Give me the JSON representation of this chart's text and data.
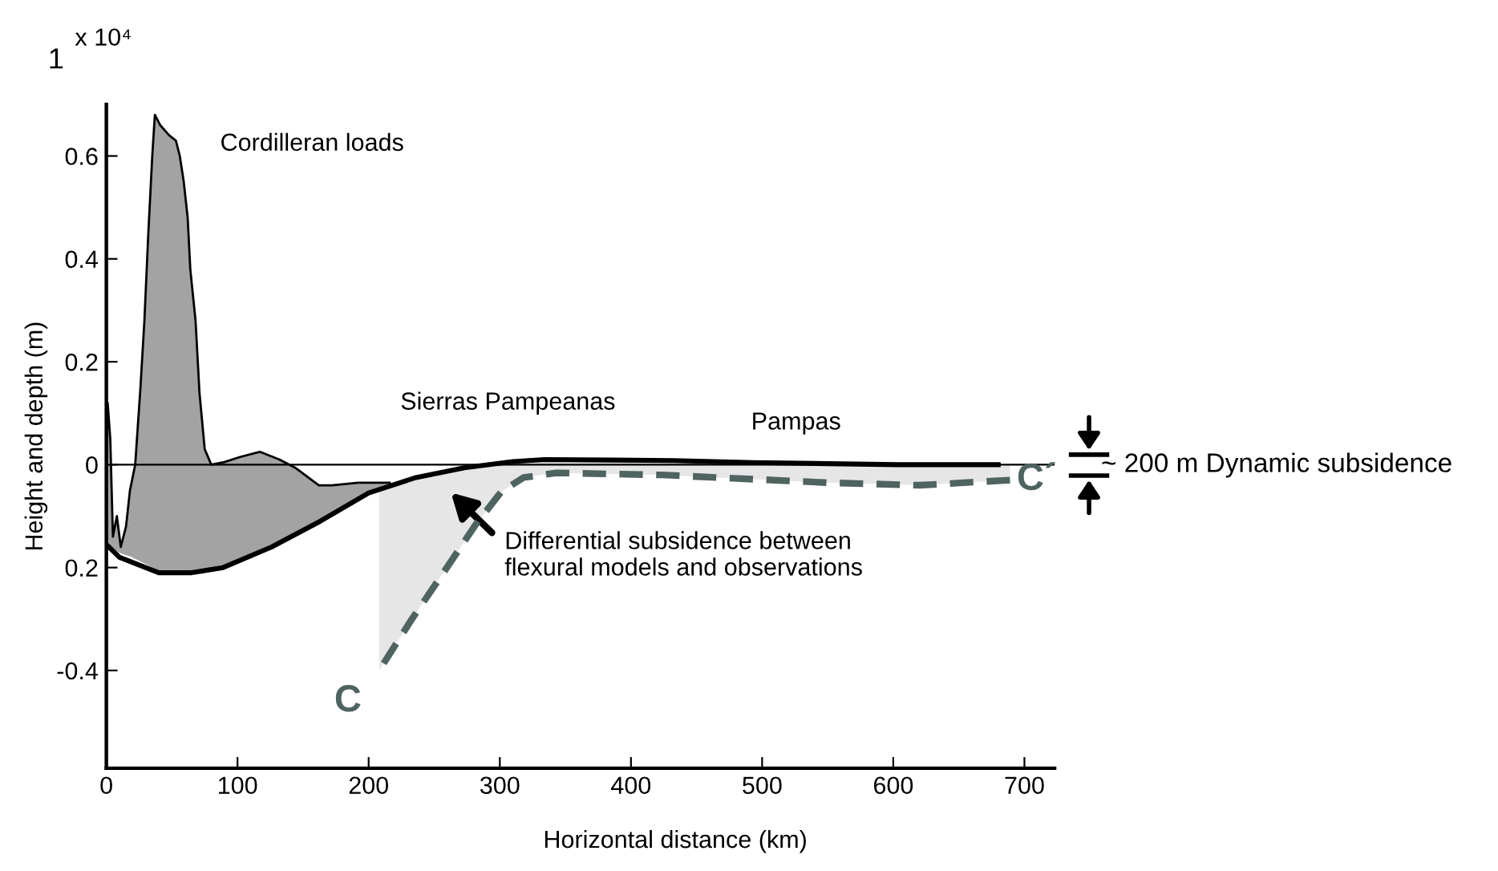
{
  "chart_data": {
    "type": "line",
    "xlabel": "Horizontal distance (km)",
    "ylabel": "Height and depth (m)",
    "xlim": [
      0,
      723
    ],
    "ylim": [
      -0.59,
      0.7
    ],
    "xticks": [
      0,
      100,
      200,
      300,
      400,
      500,
      600,
      700
    ],
    "yticks": [
      {
        "value": -0.4,
        "label": "-0.4"
      },
      {
        "value": -0.2,
        "label": "0.2"
      },
      0,
      0.2,
      0.4,
      0.6
    ],
    "grid": false,
    "legend": false,
    "ref_lines": [
      {
        "axis": "y",
        "value": 0,
        "color": "#000000"
      }
    ],
    "series": [
      {
        "color": "#000000",
        "x": [
          0,
          1,
          3,
          5,
          8,
          11,
          15,
          18,
          22,
          26,
          29,
          32,
          35,
          37,
          41,
          48,
          53,
          56,
          59,
          62,
          64,
          68,
          71,
          75,
          80,
          90,
          102,
          117,
          132,
          144,
          162,
          172,
          192,
          210,
          216
        ],
        "values": [
          0,
          0.12,
          0.05,
          -0.14,
          -0.1,
          -0.16,
          -0.12,
          -0.05,
          0,
          0.15,
          0.28,
          0.45,
          0.6,
          0.68,
          0.66,
          0.64,
          0.63,
          0.6,
          0.55,
          0.48,
          0.38,
          0.28,
          0.14,
          0.03,
          0,
          0.005,
          0.015,
          0.025,
          0.01,
          -0.006,
          -0.04,
          -0.04,
          -0.035,
          -0.035,
          -0.035
        ],
        "upper": [
          0,
          0.12,
          0.05,
          -0.14,
          -0.1,
          -0.16,
          -0.12,
          -0.05,
          0,
          0.15,
          0.28,
          0.45,
          0.6,
          0.68,
          0.66,
          0.64,
          0.63,
          0.6,
          0.55,
          0.48,
          0.38,
          0.28,
          0.14,
          0.03,
          0,
          0.005,
          0.015,
          0.025,
          0.01,
          -0.006,
          -0.04,
          -0.04,
          -0.035,
          -0.035,
          -0.035
        ],
        "lower": [
          -0.155,
          -0.156,
          -0.159,
          -0.162,
          -0.168,
          -0.172,
          -0.176,
          -0.178,
          -0.183,
          -0.188,
          -0.192,
          -0.196,
          -0.2,
          -0.203,
          -0.21,
          -0.21,
          -0.21,
          -0.21,
          -0.21,
          -0.21,
          -0.21,
          -0.21,
          -0.21,
          -0.208,
          -0.206,
          -0.201,
          -0.185,
          -0.167,
          -0.147,
          -0.131,
          -0.108,
          -0.093,
          -0.064,
          -0.05,
          -0.042
        ]
      },
      {
        "color": "#000000",
        "x": [
          0,
          10,
          40,
          65,
          89,
          126,
          163,
          200,
          236,
          273,
          310,
          334,
          432,
          493,
          603,
          680
        ],
        "values": [
          -0.155,
          -0.18,
          -0.21,
          -0.21,
          -0.2,
          -0.16,
          -0.11,
          -0.055,
          -0.025,
          -0.006,
          0.006,
          0.01,
          0.008,
          0.004,
          0.0,
          0.0
        ]
      },
      {
        "color": "#4f6360",
        "line_style": "dashed",
        "x": [
          208,
          233,
          257,
          282,
          301,
          318,
          343,
          424,
          550,
          620,
          689
        ],
        "values": [
          -0.4,
          -0.3,
          -0.21,
          -0.115,
          -0.053,
          -0.025,
          -0.016,
          -0.02,
          -0.035,
          -0.04,
          -0.03
        ],
        "lower": [
          -0.4,
          -0.3,
          -0.21,
          -0.115,
          -0.053,
          -0.025,
          -0.016,
          -0.02,
          -0.035,
          -0.04,
          -0.03
        ],
        "upper": [
          -0.05,
          -0.027,
          -0.015,
          -0.004,
          0.003,
          0.007,
          0.01,
          0.008,
          0.002,
          0.0,
          0.0
        ]
      }
    ],
    "annotations": [
      "1",
      "x 10⁴",
      "Cordilleran loads",
      "Sierras Pampeanas",
      "Pampas",
      "Differential subsidence between\nflexural models and observations",
      "~ 200 m Dynamic subsidence",
      {
        "text": "C",
        "x": 208,
        "y": -0.4
      },
      {
        "text": "C´",
        "x": 689,
        "y": -0.03
      }
    ]
  }
}
